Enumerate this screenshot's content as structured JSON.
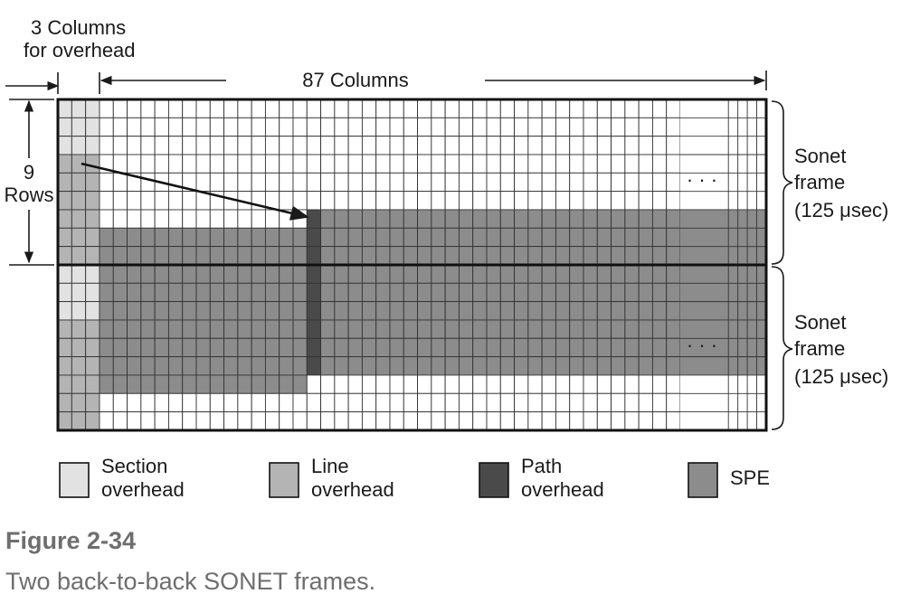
{
  "labels": {
    "overhead_cols": [
      "3 Columns",
      "for overhead"
    ],
    "columns": "87 Columns",
    "rows": [
      "9",
      "Rows"
    ],
    "frame1": [
      "Sonet",
      "frame",
      "(125 μsec)"
    ],
    "frame2": [
      "Sonet",
      "frame",
      "(125 μsec)"
    ],
    "ellipsis": "· · ·"
  },
  "legend": [
    {
      "lines": [
        "Section",
        "overhead"
      ],
      "color": "#e2e2e2"
    },
    {
      "lines": [
        "Line",
        "overhead"
      ],
      "color": "#b4b4b4"
    },
    {
      "lines": [
        "Path",
        "overhead"
      ],
      "color": "#4a4a4a"
    },
    {
      "lines": [
        "SPE"
      ],
      "color": "#8c8c8c"
    }
  ],
  "figure": {
    "title": "Figure 2-34",
    "caption": "Two back-to-back SONET frames."
  },
  "colors": {
    "section": "#e2e2e2",
    "line": "#b4b4b4",
    "path": "#4a4a4a",
    "spe": "#8c8c8c",
    "empty": "#ffffff",
    "grid": "#333333"
  }
}
